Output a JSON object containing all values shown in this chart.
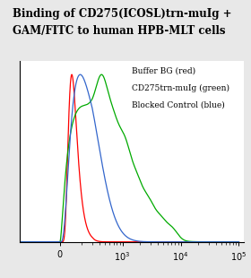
{
  "title_line1": "Binding of CD275(ICOSL)trn-muIg +",
  "title_line2": "GAM/FITC to human HPB-MLT cells",
  "title_fontsize": 8.5,
  "legend_entries": [
    "Buffer BG (red)",
    "CD275trn-muIg (green)",
    "Blocked Control (blue)"
  ],
  "legend_fontsize": 6.5,
  "bg_color": "#e8e8e8",
  "plot_bg_color": "#ffffff",
  "red_color": "#ff0000",
  "green_color": "#00aa00",
  "blue_color": "#3366cc",
  "red_peak_log": 2.05,
  "red_peak_sigma": 0.16,
  "green_peak_log": 2.35,
  "green_peak_sigma": 0.52,
  "blue_peak_log": 2.28,
  "blue_peak_sigma": 0.3,
  "linthresh": 300,
  "linscale": 0.5
}
